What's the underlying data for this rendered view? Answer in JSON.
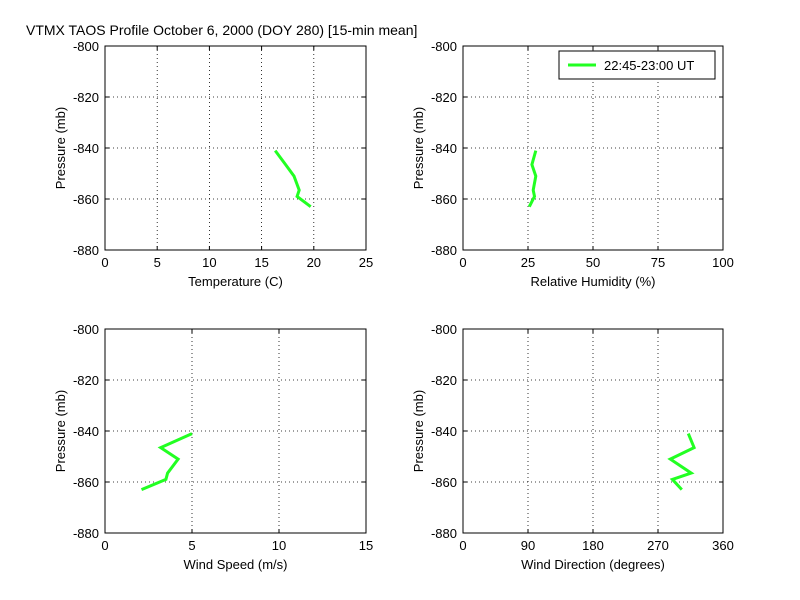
{
  "figure": {
    "title": "VTMX TAOS Profile   October 6, 2000 (DOY 280) [15-min mean]",
    "line_color": "#22ff22",
    "legend": {
      "label": "22:45-23:00 UT",
      "panel": 1,
      "placement": "top-right"
    }
  },
  "chart_data": [
    {
      "type": "line",
      "xlabel": "Temperature (C)",
      "ylabel": "Pressure (mb)",
      "xlim": [
        0,
        25
      ],
      "ylim": [
        -880,
        -800
      ],
      "xticks": [
        "0",
        "5",
        "10",
        "15",
        "20",
        "25"
      ],
      "yticks": [
        "-880",
        "-860",
        "-840",
        "-820",
        "-800"
      ],
      "grid": true,
      "series": [
        {
          "name": "22:45-23:00 UT",
          "x": [
            16.3,
            17.3,
            18.1,
            18.6,
            18.4,
            19.7
          ],
          "y": [
            -841,
            -846.5,
            -851,
            -856.5,
            -859,
            -863
          ]
        }
      ]
    },
    {
      "type": "line",
      "xlabel": "Relative Humidity (%)",
      "ylabel": "Pressure (mb)",
      "xlim": [
        0,
        100
      ],
      "ylim": [
        -880,
        -800
      ],
      "xticks": [
        "0",
        "25",
        "50",
        "75",
        "100"
      ],
      "yticks": [
        "-880",
        "-860",
        "-840",
        "-820",
        "-800"
      ],
      "grid": true,
      "series": [
        {
          "name": "22:45-23:00 UT",
          "x": [
            28,
            26.5,
            28,
            27,
            27.5,
            25.5
          ],
          "y": [
            -841,
            -846.5,
            -851,
            -856.5,
            -859,
            -863
          ]
        }
      ]
    },
    {
      "type": "line",
      "xlabel": "Wind Speed (m/s)",
      "ylabel": "Pressure (mb)",
      "xlim": [
        0,
        15
      ],
      "ylim": [
        -880,
        -800
      ],
      "xticks": [
        "0",
        "5",
        "10",
        "15"
      ],
      "yticks": [
        "-880",
        "-860",
        "-840",
        "-820",
        "-800"
      ],
      "grid": true,
      "series": [
        {
          "name": "22:45-23:00 UT",
          "x": [
            5.0,
            3.2,
            4.2,
            3.6,
            3.5,
            2.1
          ],
          "y": [
            -841,
            -846.5,
            -851,
            -856.5,
            -859,
            -863
          ]
        }
      ]
    },
    {
      "type": "line",
      "xlabel": "Wind Direction (degrees)",
      "ylabel": "Pressure (mb)",
      "xlim": [
        0,
        360
      ],
      "ylim": [
        -880,
        -800
      ],
      "xticks": [
        "0",
        "90",
        "180",
        "270",
        "360"
      ],
      "yticks": [
        "-880",
        "-860",
        "-840",
        "-820",
        "-800"
      ],
      "grid": true,
      "series": [
        {
          "name": "22:45-23:00 UT",
          "x": [
            312,
            320,
            287,
            316,
            290,
            303
          ],
          "y": [
            -841,
            -846.5,
            -851,
            -856.5,
            -859,
            -863
          ]
        }
      ]
    }
  ]
}
